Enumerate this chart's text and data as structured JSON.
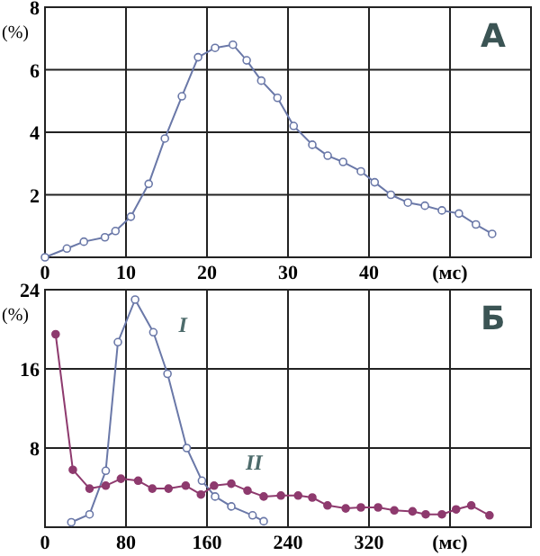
{
  "chart_data": [
    {
      "type": "line",
      "ylabel": "(%)",
      "annotations": [
        "А"
      ],
      "xlim": [
        0,
        60
      ],
      "ylim": [
        0,
        8
      ],
      "xticks": [
        0,
        10,
        20,
        30,
        40,
        {
          "value": 50,
          "label": "(мс)"
        }
      ],
      "yticks": [
        {
          "value": 0,
          "label": null
        },
        2,
        4,
        6,
        8
      ],
      "grid": true,
      "marker": "circle",
      "series": [
        {
          "color": "#6a78a8",
          "x": [
            0,
            2.7,
            4.8,
            7.4,
            8.7,
            10.6,
            12.8,
            14.8,
            16.9,
            18.9,
            21,
            23.2,
            24.9,
            26.7,
            28.7,
            30.7,
            33,
            34.9,
            36.8,
            39,
            40.7,
            42.7,
            44.8,
            46.9,
            49,
            51.1,
            53.2,
            55.2
          ],
          "values": [
            0,
            0.28,
            0.5,
            0.64,
            0.84,
            1.3,
            2.35,
            3.8,
            5.15,
            6.4,
            6.7,
            6.8,
            6.3,
            5.65,
            5.1,
            4.2,
            3.6,
            3.25,
            3.05,
            2.75,
            2.4,
            2.0,
            1.75,
            1.65,
            1.5,
            1.4,
            1.05,
            0.75
          ]
        }
      ]
    },
    {
      "type": "line",
      "ylabel": "(%)",
      "annotations": [
        "Б"
      ],
      "xlim": [
        0,
        480
      ],
      "ylim": [
        0,
        24
      ],
      "xticks": [
        0,
        80,
        160,
        240,
        320,
        {
          "value": 400,
          "label": "(мс)"
        }
      ],
      "yticks": [
        {
          "value": 0,
          "label": null
        },
        8,
        16,
        24
      ],
      "grid": true,
      "marker": "circle",
      "series": [
        {
          "name": "I",
          "color": "#6a78a8",
          "x": [
            26,
            44,
            60,
            72,
            89,
            107,
            121,
            140,
            155,
            168,
            184,
            205,
            216
          ],
          "values": [
            0.5,
            1.3,
            5.7,
            18.7,
            23,
            19.7,
            15.5,
            8,
            4.7,
            3.1,
            2.1,
            1.2,
            0.6
          ]
        },
        {
          "name": "II",
          "color": "#8e3a6e",
          "x": [
            10.5,
            27.5,
            44,
            60,
            75,
            92,
            106,
            122,
            139,
            154,
            167,
            184,
            200,
            216,
            233,
            250,
            264,
            279,
            297,
            312,
            329,
            345,
            363,
            376,
            392,
            406,
            421,
            439
          ],
          "values": [
            19.5,
            5.8,
            3.9,
            4.2,
            4.9,
            4.7,
            3.9,
            3.9,
            4.2,
            3.3,
            4.2,
            4.4,
            3.7,
            3.1,
            3.2,
            3.2,
            3.0,
            2.2,
            1.9,
            2.0,
            2.0,
            1.7,
            1.6,
            1.3,
            1.3,
            1.8,
            2.2,
            1.2
          ]
        }
      ]
    }
  ]
}
